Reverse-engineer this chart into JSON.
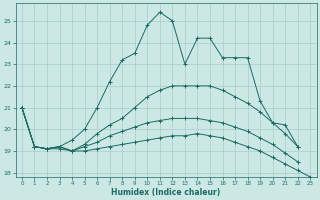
{
  "xlabel": "Humidex (Indice chaleur)",
  "background_color": "#cce8e4",
  "grid_color": "#aacccc",
  "line_color": "#1a6b60",
  "xlim": [
    -0.5,
    23.5
  ],
  "ylim": [
    17.8,
    25.8
  ],
  "yticks": [
    18,
    19,
    20,
    21,
    22,
    23,
    24,
    25
  ],
  "xticks": [
    0,
    1,
    2,
    3,
    4,
    5,
    6,
    7,
    8,
    9,
    10,
    11,
    12,
    13,
    14,
    15,
    16,
    17,
    18,
    19,
    20,
    21,
    22,
    23
  ],
  "curves": [
    {
      "x": [
        0,
        1,
        2,
        3,
        4,
        5,
        6,
        7,
        8,
        9,
        10,
        11,
        12,
        13,
        14,
        15,
        16,
        17,
        18,
        19,
        20,
        21,
        22
      ],
      "y": [
        21.0,
        19.2,
        19.1,
        19.2,
        19.5,
        20.0,
        21.0,
        22.2,
        23.2,
        23.5,
        24.8,
        25.4,
        25.0,
        23.0,
        24.2,
        24.2,
        23.3,
        23.3,
        23.3,
        21.3,
        20.3,
        20.2,
        19.2
      ],
      "marker": "+"
    },
    {
      "x": [
        0,
        1,
        2,
        3,
        4,
        5,
        6,
        7,
        8,
        9,
        10,
        11,
        12,
        13,
        14,
        15,
        16,
        17,
        18,
        19,
        20,
        21,
        22
      ],
      "y": [
        21.0,
        19.2,
        19.1,
        19.2,
        19.0,
        19.3,
        19.8,
        20.2,
        20.5,
        21.0,
        21.5,
        21.8,
        22.0,
        22.0,
        22.0,
        22.0,
        21.8,
        21.5,
        21.2,
        20.8,
        20.3,
        19.8,
        19.2
      ],
      "marker": "+"
    },
    {
      "x": [
        0,
        1,
        2,
        3,
        4,
        5,
        6,
        7,
        8,
        9,
        10,
        11,
        12,
        13,
        14,
        15,
        16,
        17,
        18,
        19,
        20,
        21,
        22
      ],
      "y": [
        21.0,
        19.2,
        19.1,
        19.2,
        19.0,
        19.2,
        19.4,
        19.7,
        19.9,
        20.1,
        20.3,
        20.4,
        20.5,
        20.5,
        20.5,
        20.4,
        20.3,
        20.1,
        19.9,
        19.6,
        19.3,
        18.9,
        18.5
      ],
      "marker": "+"
    },
    {
      "x": [
        0,
        1,
        2,
        3,
        4,
        5,
        6,
        7,
        8,
        9,
        10,
        11,
        12,
        13,
        14,
        15,
        16,
        17,
        18,
        19,
        20,
        21,
        22,
        23
      ],
      "y": [
        21.0,
        19.2,
        19.1,
        19.1,
        19.0,
        19.0,
        19.1,
        19.2,
        19.3,
        19.4,
        19.5,
        19.6,
        19.7,
        19.7,
        19.8,
        19.7,
        19.6,
        19.4,
        19.2,
        19.0,
        18.7,
        18.4,
        18.1,
        17.8
      ],
      "marker": "+"
    }
  ]
}
